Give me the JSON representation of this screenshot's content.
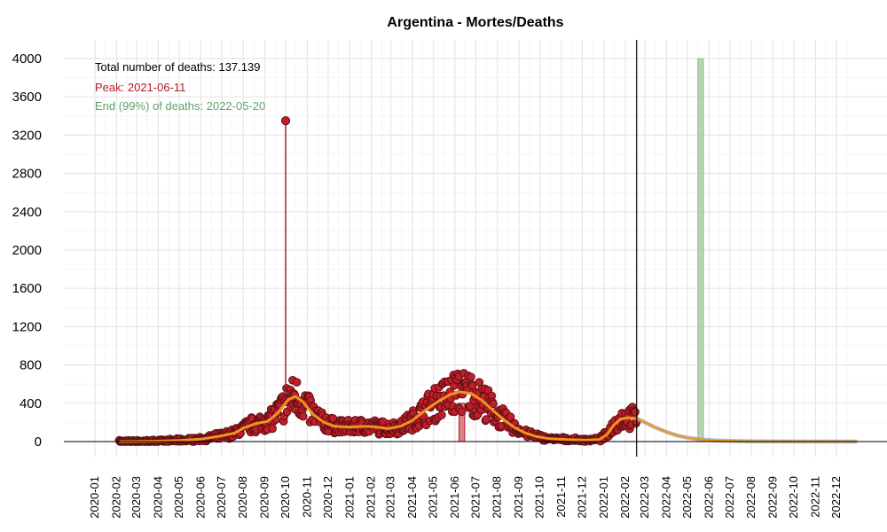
{
  "chart_data": {
    "type": "scatter",
    "title": "Argentina - Mortes/Deaths",
    "xlabel": "",
    "ylabel": "",
    "ylim": [
      0,
      4000
    ],
    "y_ticks": [
      0,
      400,
      800,
      1200,
      1600,
      2000,
      2400,
      2800,
      3200,
      3600,
      4000
    ],
    "x_ticks": [
      "2020-01",
      "2020-02",
      "2020-03",
      "2020-04",
      "2020-05",
      "2020-06",
      "2020-07",
      "2020-08",
      "2020-09",
      "2020-10",
      "2020-11",
      "2020-12",
      "2021-01",
      "2021-02",
      "2021-03",
      "2021-04",
      "2021-05",
      "2021-06",
      "2021-07",
      "2021-08",
      "2021-09",
      "2021-10",
      "2021-11",
      "2021-12",
      "2022-01",
      "2022-02",
      "2022-03",
      "2022-04",
      "2022-05",
      "2022-06",
      "2022-07",
      "2022-08",
      "2022-09",
      "2022-10",
      "2022-11",
      "2022-12"
    ],
    "grid": true,
    "annotations": {
      "total": "Total number of deaths: 137.139",
      "peak": "Peak: 2021-06-11",
      "end": "End (99%) of deaths: 2022-05-20"
    },
    "vertical_line_date": "2022-02-17",
    "peak_band": {
      "from": "2021-06-07",
      "to": "2021-06-15",
      "height": 400
    },
    "end_band": {
      "from": "2022-05-16",
      "to": "2022-05-24",
      "height": 4000
    },
    "spike": {
      "date": "2020-10-01",
      "value": 3350
    },
    "series": [
      {
        "kind": "observed",
        "smooth": [
          [
            "2020-02-05",
            0
          ],
          [
            "2020-03-01",
            1
          ],
          [
            "2020-04-01",
            5
          ],
          [
            "2020-05-01",
            12
          ],
          [
            "2020-06-01",
            25
          ],
          [
            "2020-07-01",
            60
          ],
          [
            "2020-07-20",
            90
          ],
          [
            "2020-08-01",
            140
          ],
          [
            "2020-08-20",
            190
          ],
          [
            "2020-09-05",
            210
          ],
          [
            "2020-09-20",
            300
          ],
          [
            "2020-10-05",
            440
          ],
          [
            "2020-10-15",
            470
          ],
          [
            "2020-10-25",
            420
          ],
          [
            "2020-11-10",
            280
          ],
          [
            "2020-11-25",
            200
          ],
          [
            "2020-12-10",
            160
          ],
          [
            "2021-01-01",
            150
          ],
          [
            "2021-01-20",
            160
          ],
          [
            "2021-02-05",
            155
          ],
          [
            "2021-02-25",
            135
          ],
          [
            "2021-03-15",
            160
          ],
          [
            "2021-04-01",
            220
          ],
          [
            "2021-04-20",
            330
          ],
          [
            "2021-05-10",
            430
          ],
          [
            "2021-05-25",
            490
          ],
          [
            "2021-06-08",
            520
          ],
          [
            "2021-06-25",
            500
          ],
          [
            "2021-07-10",
            430
          ],
          [
            "2021-07-25",
            330
          ],
          [
            "2021-08-10",
            230
          ],
          [
            "2021-08-25",
            150
          ],
          [
            "2021-09-10",
            90
          ],
          [
            "2021-09-25",
            55
          ],
          [
            "2021-10-15",
            30
          ],
          [
            "2021-11-10",
            20
          ],
          [
            "2021-12-05",
            15
          ],
          [
            "2021-12-25",
            20
          ],
          [
            "2022-01-05",
            70
          ],
          [
            "2022-01-15",
            170
          ],
          [
            "2022-01-25",
            235
          ],
          [
            "2022-02-05",
            250
          ],
          [
            "2022-02-17",
            240
          ]
        ]
      },
      {
        "kind": "forecast",
        "smooth": [
          [
            "2022-02-17",
            240
          ],
          [
            "2022-03-01",
            200
          ],
          [
            "2022-03-15",
            150
          ],
          [
            "2022-04-01",
            100
          ],
          [
            "2022-04-15",
            65
          ],
          [
            "2022-05-01",
            40
          ],
          [
            "2022-05-20",
            22
          ],
          [
            "2022-06-10",
            12
          ],
          [
            "2022-07-01",
            7
          ],
          [
            "2022-08-01",
            3
          ],
          [
            "2022-09-01",
            1
          ],
          [
            "2022-10-01",
            0.5
          ],
          [
            "2022-12-31",
            0
          ]
        ]
      }
    ]
  }
}
